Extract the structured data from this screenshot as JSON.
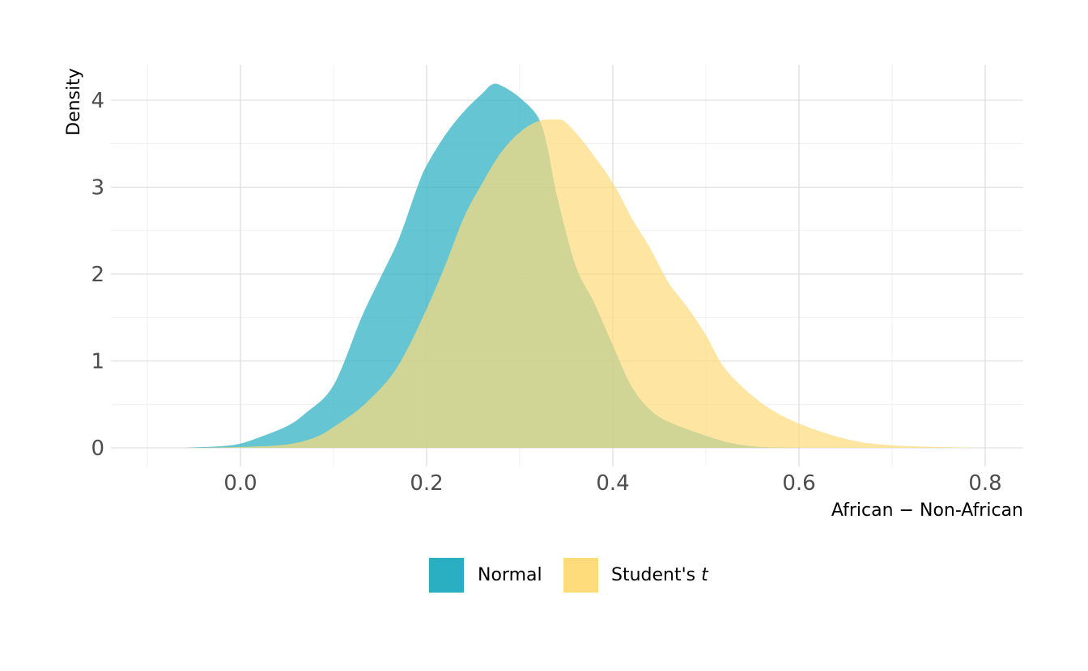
{
  "chart_data": {
    "type": "area",
    "title": "",
    "xlabel": "African − Non-African",
    "ylabel": "Density",
    "xlim": [
      -0.1,
      0.84
    ],
    "ylim": [
      0,
      4.3
    ],
    "x_ticks": [
      0.0,
      0.2,
      0.4,
      0.6,
      0.8
    ],
    "x_tick_labels": [
      "0.0",
      "0.2",
      "0.4",
      "0.6",
      "0.8"
    ],
    "y_ticks": [
      0,
      1,
      2,
      3,
      4
    ],
    "y_tick_labels": [
      "0",
      "1",
      "2",
      "3",
      "4"
    ],
    "grid": true,
    "legend_position": "bottom",
    "series": [
      {
        "name": "Normal",
        "color": "#2aaec1",
        "x": [
          -0.06,
          -0.02,
          0.0,
          0.02,
          0.05,
          0.07,
          0.1,
          0.13,
          0.15,
          0.17,
          0.19,
          0.2,
          0.22,
          0.24,
          0.26,
          0.27,
          0.28,
          0.3,
          0.32,
          0.33,
          0.34,
          0.36,
          0.38,
          0.4,
          0.42,
          0.44,
          0.46,
          0.5,
          0.53,
          0.56,
          0.6
        ],
        "y": [
          0.0,
          0.02,
          0.05,
          0.12,
          0.25,
          0.4,
          0.72,
          1.5,
          1.95,
          2.4,
          3.0,
          3.25,
          3.6,
          3.87,
          4.08,
          4.18,
          4.17,
          4.03,
          3.8,
          3.45,
          2.9,
          2.1,
          1.67,
          1.18,
          0.71,
          0.44,
          0.3,
          0.14,
          0.05,
          0.01,
          0.0
        ]
      },
      {
        "name": "Student's t",
        "color": "#fedb7b",
        "x": [
          -0.1,
          -0.05,
          0.0,
          0.05,
          0.08,
          0.1,
          0.13,
          0.16,
          0.18,
          0.2,
          0.22,
          0.24,
          0.26,
          0.28,
          0.3,
          0.32,
          0.34,
          0.35,
          0.37,
          0.4,
          0.42,
          0.44,
          0.46,
          0.48,
          0.5,
          0.52,
          0.55,
          0.58,
          0.62,
          0.66,
          0.7,
          0.75,
          0.8
        ],
        "y": [
          0.0,
          0.0,
          0.01,
          0.04,
          0.12,
          0.24,
          0.47,
          0.8,
          1.15,
          1.6,
          2.1,
          2.65,
          3.05,
          3.4,
          3.63,
          3.76,
          3.78,
          3.74,
          3.5,
          3.05,
          2.65,
          2.3,
          1.9,
          1.62,
          1.3,
          0.92,
          0.6,
          0.38,
          0.2,
          0.08,
          0.03,
          0.01,
          0.0
        ]
      }
    ]
  }
}
